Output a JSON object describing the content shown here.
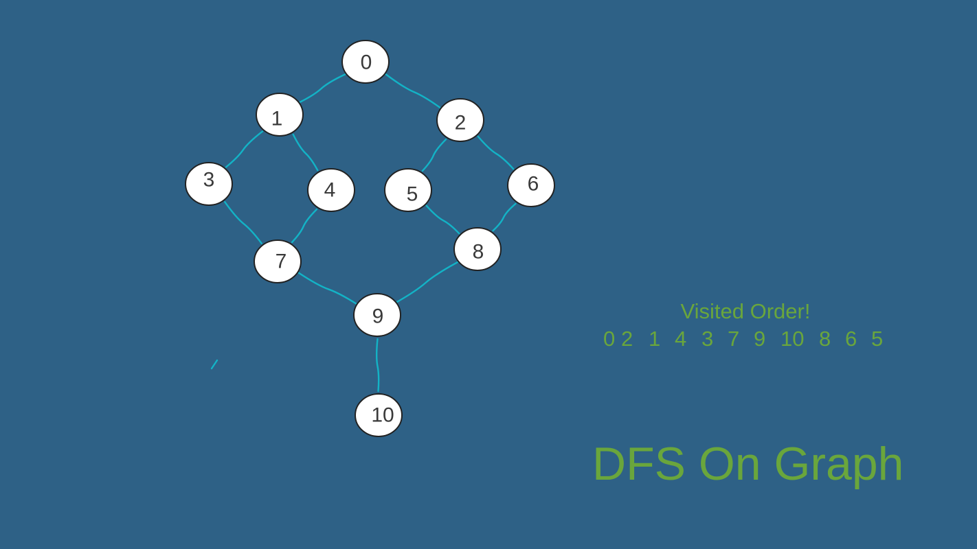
{
  "colors": {
    "background": "#2e6186",
    "edge": "#13b3c6",
    "node_fill": "#ffffff",
    "node_stroke": "#222222",
    "node_text": "#3a3a3a",
    "accent_text": "#6aa63c"
  },
  "graph": {
    "nodes": [
      {
        "id": "0",
        "label": "0"
      },
      {
        "id": "1",
        "label": "1"
      },
      {
        "id": "2",
        "label": "2"
      },
      {
        "id": "3",
        "label": "3"
      },
      {
        "id": "4",
        "label": "4"
      },
      {
        "id": "5",
        "label": "5"
      },
      {
        "id": "6",
        "label": "6"
      },
      {
        "id": "7",
        "label": "7"
      },
      {
        "id": "8",
        "label": "8"
      },
      {
        "id": "9",
        "label": "9"
      },
      {
        "id": "10",
        "label": "10"
      }
    ],
    "edges": [
      {
        "from": "0",
        "to": "1"
      },
      {
        "from": "0",
        "to": "2"
      },
      {
        "from": "1",
        "to": "3"
      },
      {
        "from": "1",
        "to": "4"
      },
      {
        "from": "2",
        "to": "5"
      },
      {
        "from": "2",
        "to": "6"
      },
      {
        "from": "3",
        "to": "7"
      },
      {
        "from": "4",
        "to": "7"
      },
      {
        "from": "5",
        "to": "8"
      },
      {
        "from": "6",
        "to": "8"
      },
      {
        "from": "7",
        "to": "9"
      },
      {
        "from": "8",
        "to": "9"
      },
      {
        "from": "9",
        "to": "10"
      }
    ]
  },
  "visited": {
    "title": "Visited Order!",
    "order": [
      "0",
      "2",
      "1",
      "4",
      "3",
      "7",
      "9",
      "10",
      "8",
      "6",
      "5"
    ]
  },
  "title": "DFS On Graph"
}
